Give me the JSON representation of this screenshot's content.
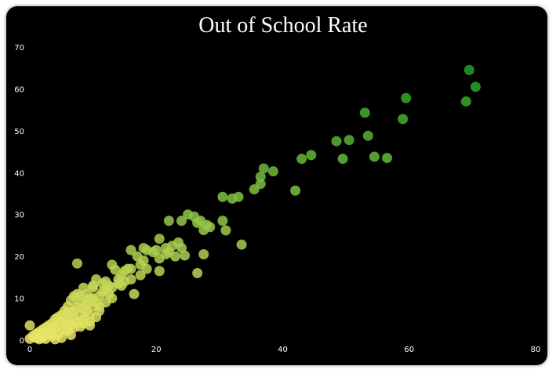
{
  "chart_data": {
    "type": "scatter",
    "title": "Out of School Rate",
    "xlabel": "",
    "ylabel": "",
    "xlim": [
      0,
      80
    ],
    "ylim": [
      0,
      70
    ],
    "x_ticks": [
      0,
      20,
      40,
      60,
      80
    ],
    "y_ticks": [
      0,
      10,
      20,
      30,
      40,
      50,
      60,
      70
    ],
    "grid": false,
    "legend": "none",
    "colors": {
      "low": "#ece566",
      "high": "#22a022",
      "background": "#000000"
    },
    "series": [
      {
        "points": [
          [
            69.5,
            64.5
          ],
          [
            70.5,
            60.5
          ],
          [
            69,
            57
          ],
          [
            59.5,
            57.8
          ],
          [
            59,
            52.8
          ],
          [
            53,
            54.3
          ],
          [
            53.5,
            48.8
          ],
          [
            50.5,
            47.8
          ],
          [
            48.5,
            47.5
          ],
          [
            49.5,
            43.3
          ],
          [
            54.5,
            43.8
          ],
          [
            56.5,
            43.5
          ],
          [
            44.5,
            44.2
          ],
          [
            43,
            43.3
          ],
          [
            37,
            41
          ],
          [
            38.5,
            40.3
          ],
          [
            36.5,
            39
          ],
          [
            36.5,
            37.3
          ],
          [
            35.5,
            36
          ],
          [
            42,
            35.7
          ],
          [
            30.5,
            34.2
          ],
          [
            32,
            33.8
          ],
          [
            33,
            34.2
          ],
          [
            33.5,
            22.8
          ],
          [
            25,
            30
          ],
          [
            26,
            29.5
          ],
          [
            27,
            28.5
          ],
          [
            24,
            28.5
          ],
          [
            28,
            27.5
          ],
          [
            27.5,
            26.3
          ],
          [
            28.5,
            27
          ],
          [
            26.5,
            28
          ],
          [
            30.5,
            28.5
          ],
          [
            31,
            26.2
          ],
          [
            22,
            28.5
          ],
          [
            20.5,
            24.2
          ],
          [
            21.5,
            22
          ],
          [
            22.5,
            22.5
          ],
          [
            23.5,
            23.3
          ],
          [
            24,
            22
          ],
          [
            22,
            21
          ],
          [
            20,
            21.5
          ],
          [
            18,
            22
          ],
          [
            18.5,
            21.5
          ],
          [
            19.5,
            21
          ],
          [
            24.5,
            20.2
          ],
          [
            26.5,
            16
          ],
          [
            27.5,
            20.5
          ],
          [
            20.5,
            19.5
          ],
          [
            21.5,
            20.5
          ],
          [
            23,
            20
          ],
          [
            17,
            20
          ],
          [
            18,
            19
          ],
          [
            16,
            21.5
          ],
          [
            17.5,
            18
          ],
          [
            16,
            17
          ],
          [
            15,
            16.5
          ],
          [
            18.5,
            17
          ],
          [
            17.5,
            15.5
          ],
          [
            16,
            14.5
          ],
          [
            14.5,
            15.5
          ],
          [
            15.5,
            17
          ],
          [
            13.5,
            16.8
          ],
          [
            20.5,
            16.5
          ],
          [
            13,
            18
          ],
          [
            14,
            13.5
          ],
          [
            12.5,
            13
          ],
          [
            13,
            12.5
          ],
          [
            14.5,
            13
          ],
          [
            16.5,
            11
          ],
          [
            10.5,
            14.5
          ],
          [
            11.5,
            13.5
          ],
          [
            10,
            12.5
          ],
          [
            12,
            12
          ],
          [
            11.5,
            11.5
          ],
          [
            11,
            10.5
          ],
          [
            10.5,
            9
          ],
          [
            9.5,
            10
          ],
          [
            9,
            11
          ],
          [
            8.5,
            12.5
          ],
          [
            7.5,
            11
          ],
          [
            7,
            10.5
          ],
          [
            6.5,
            9.5
          ],
          [
            6,
            8
          ],
          [
            5.5,
            7
          ],
          [
            8,
            9
          ],
          [
            9,
            8.5
          ],
          [
            7.5,
            8
          ],
          [
            8.5,
            7.5
          ],
          [
            10,
            8
          ],
          [
            7,
            7
          ],
          [
            6.5,
            6.5
          ],
          [
            5,
            6
          ],
          [
            4.5,
            5.5
          ],
          [
            6,
            5
          ],
          [
            5.5,
            4.5
          ],
          [
            4,
            5
          ],
          [
            3.5,
            4
          ],
          [
            3,
            3.5
          ],
          [
            2.5,
            3
          ],
          [
            2,
            2.5
          ],
          [
            1.5,
            2
          ],
          [
            1,
            1.5
          ],
          [
            0.5,
            1
          ],
          [
            0,
            0.3
          ],
          [
            0,
            3.5
          ],
          [
            1,
            0.5
          ],
          [
            2,
            1.2
          ],
          [
            3,
            2
          ],
          [
            4,
            3
          ],
          [
            5,
            3.5
          ],
          [
            6,
            4
          ],
          [
            7,
            5
          ],
          [
            8,
            6
          ],
          [
            9,
            7
          ],
          [
            9.5,
            6
          ],
          [
            8.5,
            5
          ],
          [
            7.5,
            4.5
          ],
          [
            6.5,
            3.5
          ],
          [
            5.5,
            2.5
          ],
          [
            4.5,
            1.5
          ],
          [
            3.5,
            1
          ],
          [
            2.5,
            0.3
          ],
          [
            6,
            2.2
          ],
          [
            9.5,
            4.5
          ],
          [
            8.5,
            4
          ],
          [
            7,
            3
          ],
          [
            10.5,
            5.5
          ],
          [
            11,
            7
          ],
          [
            12,
            9
          ],
          [
            13,
            10
          ],
          [
            11,
            8
          ],
          [
            9.5,
            3.5
          ],
          [
            8,
            3.2
          ],
          [
            6.5,
            1.2
          ],
          [
            5,
            0.5
          ],
          [
            7.5,
            18.3
          ],
          [
            12,
            14
          ],
          [
            10,
            13
          ],
          [
            4,
            2.5
          ],
          [
            3,
            1.5
          ],
          [
            2,
            0.5
          ],
          [
            1.5,
            0.2
          ],
          [
            4,
            0.2
          ],
          [
            6,
            6.5
          ],
          [
            5,
            4.5
          ],
          [
            3.5,
            2.8
          ],
          [
            2.5,
            1.8
          ],
          [
            8,
            10.5
          ],
          [
            9,
            9.5
          ],
          [
            10,
            10
          ],
          [
            12.5,
            11
          ],
          [
            14,
            14.5
          ],
          [
            15,
            14
          ]
        ]
      }
    ]
  }
}
